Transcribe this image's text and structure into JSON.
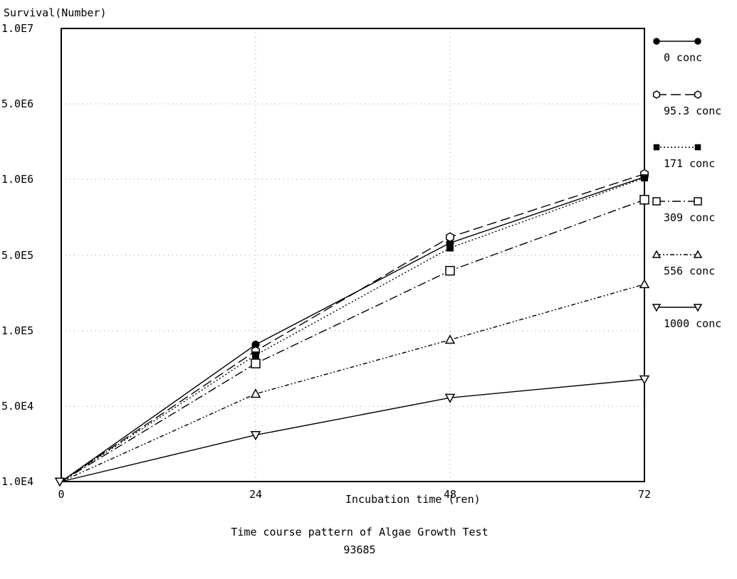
{
  "chart_data": {
    "type": "line",
    "ylabel": "Survival(Number)",
    "xlabel": "Incubation time (ren)",
    "title": "Time course pattern of Algae Growth Test",
    "subtitle": "93685",
    "x": [
      0,
      24,
      48,
      72
    ],
    "x_ticks": [
      "0",
      "24",
      "48",
      "72"
    ],
    "y_ticks": [
      "1.0E4",
      "5.0E4",
      "1.0E5",
      "5.0E5",
      "1.0E6",
      "5.0E6",
      "1.0E7"
    ],
    "y_scale": "log",
    "ylim": [
      10000,
      10000000
    ],
    "xlim": [
      0,
      72
    ],
    "grid": "dotted",
    "legend_position": "right",
    "series": [
      {
        "name": "0 conc",
        "marker": "filled-circle",
        "line": "solid",
        "values": [
          10000,
          88000,
          560000,
          1050000
        ]
      },
      {
        "name": "95.3 conc",
        "marker": "open-hexagon",
        "line": "long-dash",
        "values": [
          10000,
          83000,
          590000,
          1120000
        ]
      },
      {
        "name": "171 conc",
        "marker": "filled-square",
        "line": "dotted",
        "values": [
          10000,
          80000,
          535000,
          1030000
        ]
      },
      {
        "name": "309 conc",
        "marker": "open-square",
        "line": "dash-dot",
        "values": [
          10000,
          74000,
          360000,
          830000
        ]
      },
      {
        "name": "556 conc",
        "marker": "open-triangle-up",
        "line": "dash-dot-dot",
        "values": [
          10000,
          56000,
          92000,
          270000
        ]
      },
      {
        "name": "1000 conc",
        "marker": "open-triangle-down",
        "line": "solid",
        "values": [
          10000,
          27000,
          54000,
          64000
        ]
      }
    ]
  }
}
